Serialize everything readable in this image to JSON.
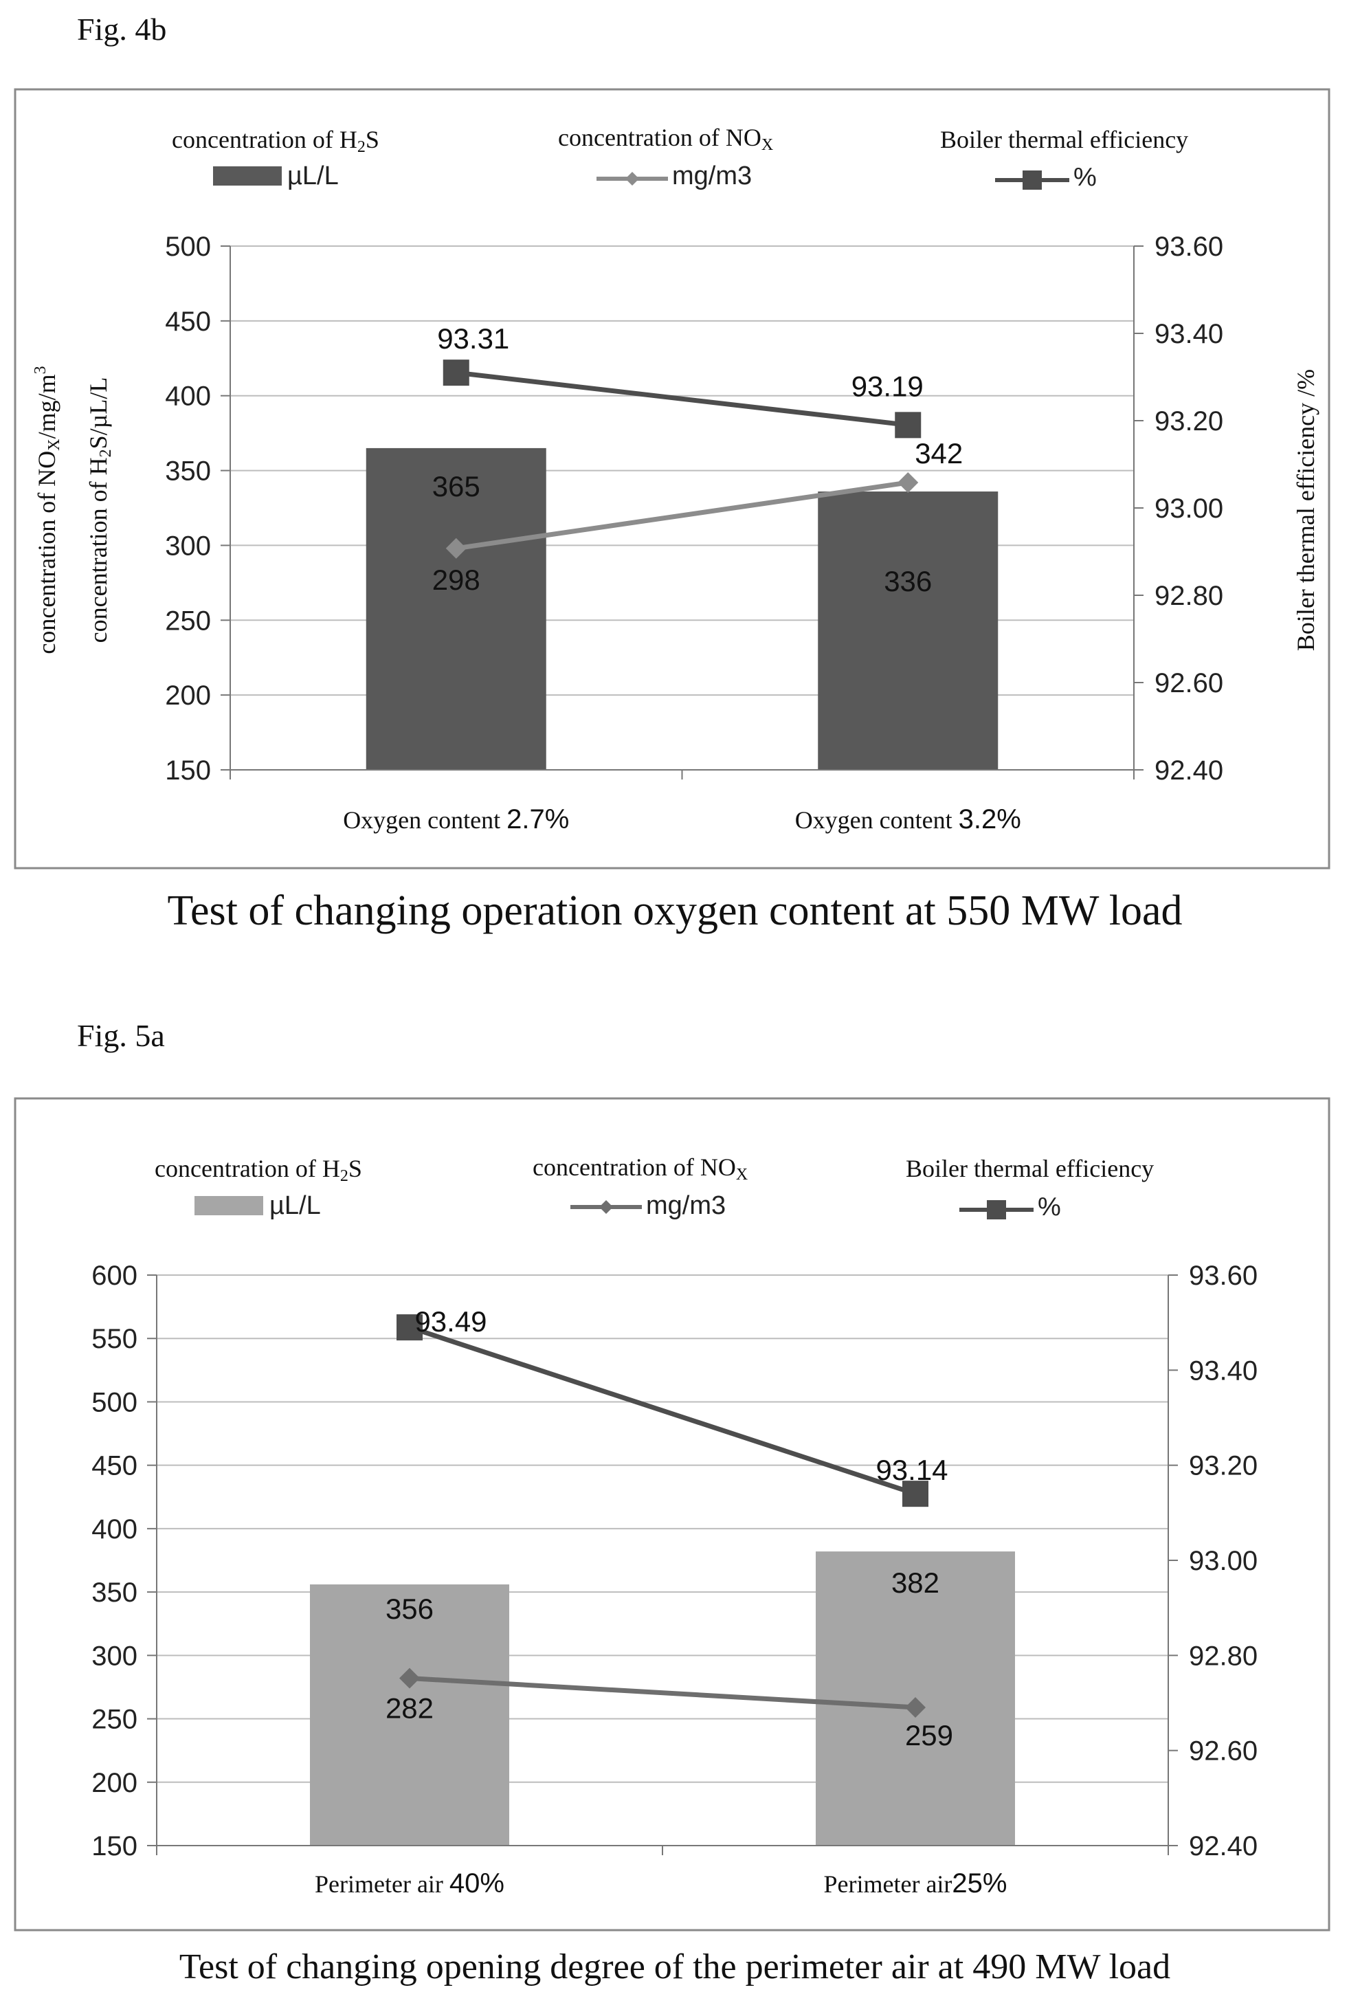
{
  "chart_data": [
    {
      "figure_label": "Fig. 4b",
      "type": "bar",
      "caption": "Test of changing operation oxygen content at 550 MW load",
      "categories": [
        {
          "prefix": "Oxygen content ",
          "value": "2.7%"
        },
        {
          "prefix": "Oxygen content ",
          "value": "3.2%"
        }
      ],
      "legend": [
        {
          "title_pre": "concentration of H",
          "title_sub": "2",
          "title_post": "S",
          "unit": "µL/L",
          "marker": "bar",
          "color": "#595959"
        },
        {
          "title_pre": "concentration of NO",
          "title_sub": "X",
          "title_post": "",
          "unit": "mg/m3",
          "marker": "diamond",
          "color": "#8c8c8c"
        },
        {
          "title_pre": "Boiler thermal efficiency",
          "title_sub": "",
          "title_post": "",
          "unit": "%",
          "marker": "square",
          "color": "#4d4d4d"
        }
      ],
      "series": [
        {
          "kind": "bar",
          "axis": "left",
          "values": [
            365,
            336
          ],
          "labels": [
            "365",
            "336"
          ]
        },
        {
          "kind": "line",
          "axis": "left",
          "marker": "diamond",
          "values": [
            298,
            342
          ],
          "labels": [
            "298",
            "342"
          ]
        },
        {
          "kind": "line",
          "axis": "right",
          "marker": "square",
          "values": [
            93.31,
            93.19
          ],
          "labels": [
            "93.31",
            "93.19"
          ]
        }
      ],
      "y_left": {
        "ylim": [
          150,
          500
        ],
        "ticks": [
          "150",
          "200",
          "250",
          "300",
          "350",
          "400",
          "450",
          "500"
        ]
      },
      "y_right": {
        "ylim": [
          92.4,
          93.6
        ],
        "ticks": [
          "92.40",
          "92.60",
          "92.80",
          "93.00",
          "93.20",
          "93.40",
          "93.60"
        ]
      },
      "ylabel_left_1": "concentration of NOx/mg/m3",
      "ylabel_left_2": "concentration of H2S/µL/L",
      "ylabel_right": "Boiler thermal efficiency /%",
      "grid": true
    },
    {
      "figure_label": "Fig. 5a",
      "type": "bar",
      "caption": "Test of changing opening degree of the perimeter air at 490 MW load",
      "categories": [
        {
          "prefix": "Perimeter air ",
          "value": "40%"
        },
        {
          "prefix": "Perimeter air",
          "value": "25%"
        }
      ],
      "legend": [
        {
          "title_pre": "concentration of H",
          "title_sub": "2",
          "title_post": "S",
          "unit": "µL/L",
          "marker": "bar",
          "color": "#a6a6a6"
        },
        {
          "title_pre": "concentration of NO",
          "title_sub": "X",
          "title_post": "",
          "unit": "mg/m3",
          "marker": "diamond",
          "color": "#6e6e6e"
        },
        {
          "title_pre": "Boiler thermal efficiency",
          "title_sub": "",
          "title_post": "",
          "unit": "%",
          "marker": "square",
          "color": "#4d4d4d"
        }
      ],
      "series": [
        {
          "kind": "bar",
          "axis": "left",
          "values": [
            356,
            382
          ],
          "labels": [
            "356",
            "382"
          ]
        },
        {
          "kind": "line",
          "axis": "left",
          "marker": "diamond",
          "values": [
            282,
            259
          ],
          "labels": [
            "282",
            "259"
          ]
        },
        {
          "kind": "line",
          "axis": "right",
          "marker": "square",
          "values": [
            93.49,
            93.14
          ],
          "labels": [
            "93.49",
            "93.14"
          ]
        }
      ],
      "y_left": {
        "ylim": [
          150,
          600
        ],
        "ticks": [
          "150",
          "200",
          "250",
          "300",
          "350",
          "400",
          "450",
          "500",
          "550",
          "600"
        ]
      },
      "y_right": {
        "ylim": [
          92.4,
          93.6
        ],
        "ticks": [
          "92.40",
          "92.60",
          "92.80",
          "93.00",
          "93.20",
          "93.40",
          "93.60"
        ]
      },
      "grid": true
    }
  ]
}
